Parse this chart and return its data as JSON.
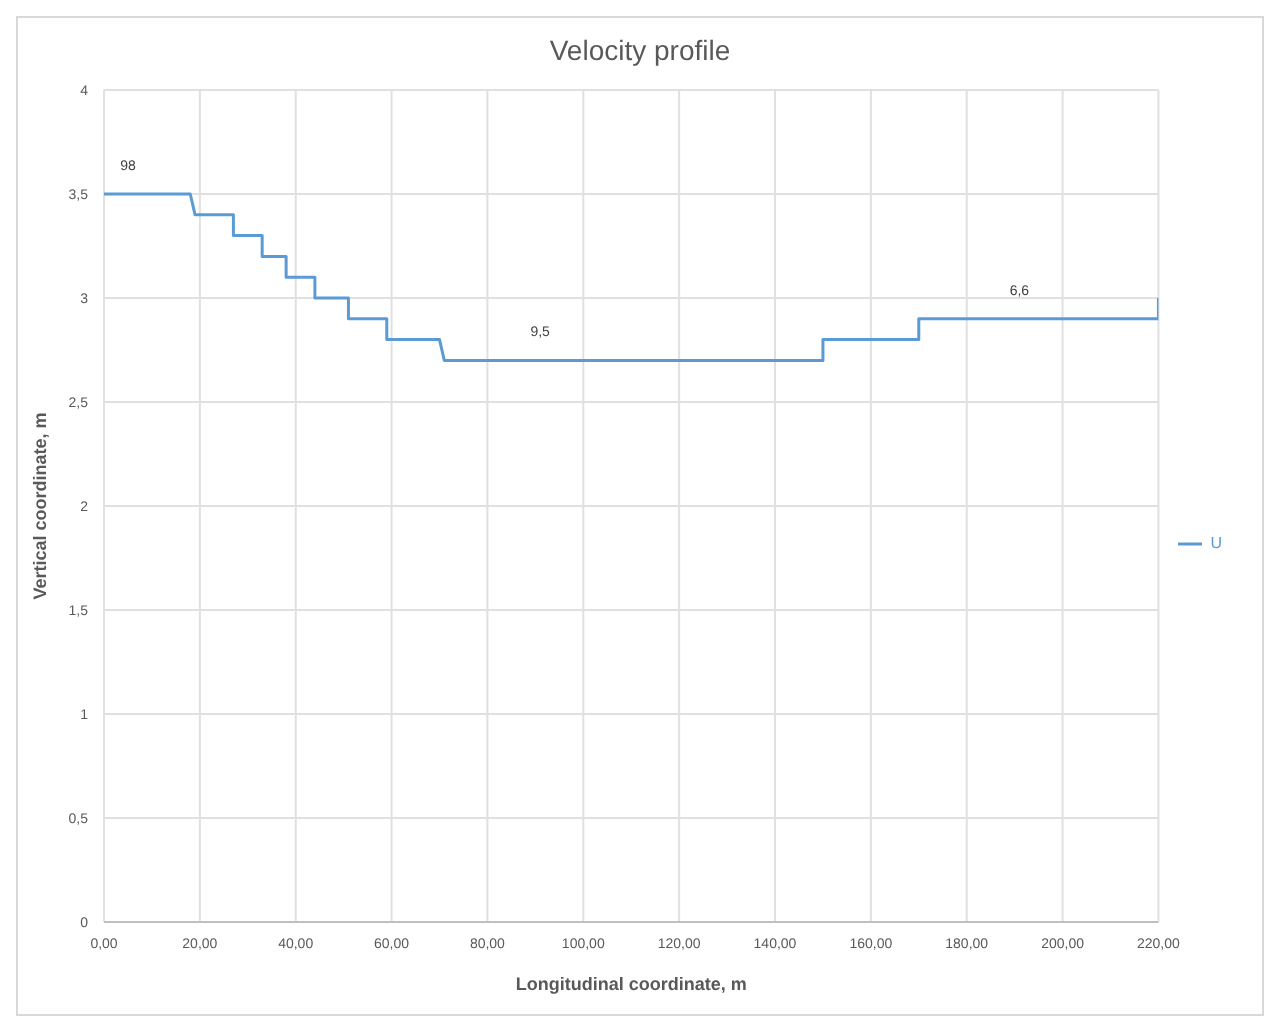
{
  "chart_data": {
    "type": "line",
    "title": "Velocity profile",
    "xlabel": "Longitudinal coordinate, m",
    "ylabel": "Vertical coordinate, m",
    "series": [
      {
        "name": "U",
        "color": "#5b9bd5",
        "x": [
          0,
          18,
          19,
          27,
          27,
          33,
          33,
          38,
          38,
          44,
          44,
          51,
          51,
          59,
          59,
          70,
          71,
          150,
          150,
          170,
          170,
          220,
          220
        ],
        "values": [
          3.5,
          3.5,
          3.4,
          3.4,
          3.3,
          3.3,
          3.2,
          3.2,
          3.1,
          3.1,
          3.0,
          3.0,
          2.9,
          2.9,
          2.8,
          2.8,
          2.7,
          2.7,
          2.8,
          2.8,
          2.9,
          2.9,
          3.0
        ]
      }
    ],
    "xlim": [
      0,
      220
    ],
    "xticks": [
      {
        "value": 0,
        "label": "0,00"
      },
      {
        "value": 20,
        "label": "20,00"
      },
      {
        "value": 40,
        "label": "40,00"
      },
      {
        "value": 60,
        "label": "60,00"
      },
      {
        "value": 80,
        "label": "80,00"
      },
      {
        "value": 100,
        "label": "100,00"
      },
      {
        "value": 120,
        "label": "120,00"
      },
      {
        "value": 140,
        "label": "140,00"
      },
      {
        "value": 160,
        "label": "160,00"
      },
      {
        "value": 180,
        "label": "180,00"
      },
      {
        "value": 200,
        "label": "200,00"
      },
      {
        "value": 220,
        "label": "220,00"
      }
    ],
    "ylim": [
      0,
      4
    ],
    "yticks": [
      0,
      {
        "value": 0.5,
        "label": "0,5"
      },
      1,
      {
        "value": 1.5,
        "label": "1,5"
      },
      2,
      {
        "value": 2.5,
        "label": "2,5"
      },
      3,
      {
        "value": 3.5,
        "label": "3,5"
      },
      4
    ],
    "annotations": [
      {
        "text": "98",
        "x": 5,
        "y": 3.5
      },
      {
        "text": "9,5",
        "x": 91,
        "y": 2.7
      },
      {
        "text": "6,6",
        "x": 191,
        "y": 2.9
      }
    ],
    "grid": true,
    "legend": "right",
    "marker": "none",
    "line_style": "solid"
  }
}
